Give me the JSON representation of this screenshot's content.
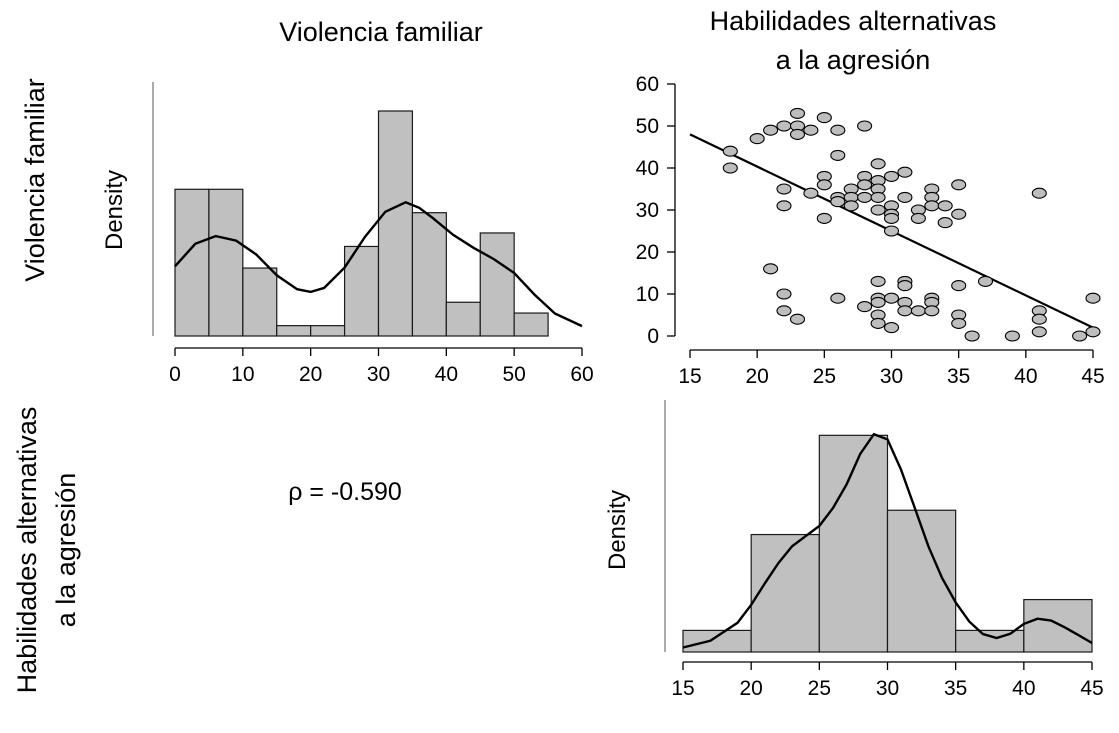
{
  "titles": {
    "col1": "Violencia familiar",
    "col2_line1": "Habilidades alternativas",
    "col2_line2": "a la agresión",
    "row1": "Violencia familiar",
    "row2_line1": "Habilidades alternativas",
    "row2_line2": "a la agresión"
  },
  "correlation_label": "ρ = -0.590",
  "chart_data": [
    {
      "id": "hist-violencia",
      "type": "bar",
      "title": "Violencia familiar",
      "ylabel": "Density",
      "bin_edges": [
        0,
        5,
        10,
        15,
        20,
        25,
        30,
        35,
        40,
        45,
        50,
        55
      ],
      "values": [
        0.0326,
        0.0326,
        0.0151,
        0.0023,
        0.0023,
        0.0199,
        0.05,
        0.0274,
        0.0075,
        0.0229,
        0.0051
      ],
      "xlim": [
        0,
        60
      ],
      "xticks": [
        "0",
        "10",
        "20",
        "30",
        "40",
        "50",
        "60"
      ],
      "ylim": [
        0,
        0.054
      ],
      "density_curve": {
        "x": [
          0,
          3,
          6,
          9,
          12,
          15,
          18,
          20,
          22,
          25,
          28,
          31,
          34,
          36,
          38,
          41,
          44,
          47,
          50,
          53,
          56,
          60
        ],
        "y": [
          0.0155,
          0.0205,
          0.0222,
          0.0212,
          0.0181,
          0.0135,
          0.0104,
          0.0098,
          0.0107,
          0.0152,
          0.022,
          0.0276,
          0.0297,
          0.0285,
          0.0262,
          0.0225,
          0.0196,
          0.0171,
          0.014,
          0.0092,
          0.005,
          0.0022
        ]
      }
    },
    {
      "id": "scatter",
      "type": "scatter",
      "x_variable": "Habilidades alternativas a la agresión",
      "y_variable": "Violencia familiar",
      "xlim": [
        15,
        45
      ],
      "ylim": [
        0,
        60
      ],
      "xticks": [
        "15",
        "20",
        "25",
        "30",
        "35",
        "40",
        "45"
      ],
      "yticks": [
        "0",
        "10",
        "20",
        "30",
        "40",
        "50",
        "60"
      ],
      "fit_line": {
        "x": [
          15,
          45
        ],
        "y": [
          48,
          2
        ]
      },
      "points": [
        [
          18,
          44
        ],
        [
          18,
          40
        ],
        [
          20,
          47
        ],
        [
          21,
          49
        ],
        [
          22,
          50
        ],
        [
          23,
          53
        ],
        [
          23,
          50
        ],
        [
          23,
          48
        ],
        [
          24,
          49
        ],
        [
          25,
          52
        ],
        [
          26,
          49
        ],
        [
          28,
          50
        ],
        [
          22,
          35
        ],
        [
          22,
          31
        ],
        [
          24,
          34
        ],
        [
          25,
          38
        ],
        [
          25,
          36
        ],
        [
          25,
          28
        ],
        [
          26,
          43
        ],
        [
          26,
          33
        ],
        [
          26,
          32
        ],
        [
          27,
          35
        ],
        [
          27,
          33
        ],
        [
          27,
          31
        ],
        [
          28,
          38
        ],
        [
          28,
          36
        ],
        [
          28,
          33
        ],
        [
          29,
          41
        ],
        [
          29,
          37
        ],
        [
          29,
          35
        ],
        [
          29,
          33
        ],
        [
          29,
          30
        ],
        [
          30,
          38
        ],
        [
          30,
          31
        ],
        [
          30,
          29
        ],
        [
          30,
          28
        ],
        [
          30,
          25
        ],
        [
          31,
          39
        ],
        [
          31,
          33
        ],
        [
          32,
          30
        ],
        [
          32,
          28
        ],
        [
          33,
          35
        ],
        [
          33,
          33
        ],
        [
          33,
          31
        ],
        [
          34,
          31
        ],
        [
          34,
          27
        ],
        [
          35,
          36
        ],
        [
          35,
          29
        ],
        [
          41,
          34
        ],
        [
          21,
          16
        ],
        [
          22,
          10
        ],
        [
          22,
          6
        ],
        [
          23,
          4
        ],
        [
          26,
          9
        ],
        [
          28,
          7
        ],
        [
          29,
          13
        ],
        [
          29,
          9
        ],
        [
          29,
          8
        ],
        [
          29,
          5
        ],
        [
          29,
          3
        ],
        [
          30,
          9
        ],
        [
          30,
          2
        ],
        [
          31,
          13
        ],
        [
          31,
          12
        ],
        [
          31,
          8
        ],
        [
          31,
          6
        ],
        [
          32,
          6
        ],
        [
          33,
          9
        ],
        [
          33,
          8
        ],
        [
          33,
          6
        ],
        [
          35,
          12
        ],
        [
          35,
          5
        ],
        [
          35,
          3
        ],
        [
          36,
          0
        ],
        [
          37,
          13
        ],
        [
          39,
          0
        ],
        [
          41,
          6
        ],
        [
          41,
          4
        ],
        [
          41,
          1
        ],
        [
          44,
          0
        ],
        [
          45,
          9
        ],
        [
          45,
          1
        ]
      ]
    },
    {
      "id": "hist-habilidades",
      "type": "bar",
      "title": "Habilidades alternativas a la agresión",
      "ylabel": "Density",
      "bin_edges": [
        15,
        20,
        25,
        30,
        35,
        40,
        45
      ],
      "values": [
        0.0096,
        0.0522,
        0.0963,
        0.063,
        0.0096,
        0.0233
      ],
      "xlim": [
        15,
        45
      ],
      "xticks": [
        "15",
        "20",
        "25",
        "30",
        "35",
        "40",
        "45"
      ],
      "ylim": [
        0,
        0.1
      ],
      "density_curve": {
        "x": [
          15,
          17,
          19,
          20,
          21,
          22,
          23,
          24,
          25,
          26,
          27,
          28,
          29,
          30,
          31,
          32,
          33,
          34,
          35,
          36,
          37,
          38,
          39,
          40,
          41,
          42,
          43,
          44,
          45
        ],
        "y": [
          0.002,
          0.005,
          0.013,
          0.021,
          0.0305,
          0.0395,
          0.047,
          0.0515,
          0.056,
          0.064,
          0.0745,
          0.088,
          0.0968,
          0.0945,
          0.081,
          0.064,
          0.047,
          0.033,
          0.022,
          0.0135,
          0.008,
          0.0062,
          0.0081,
          0.0125,
          0.0148,
          0.014,
          0.011,
          0.0075,
          0.004
        ]
      }
    }
  ]
}
